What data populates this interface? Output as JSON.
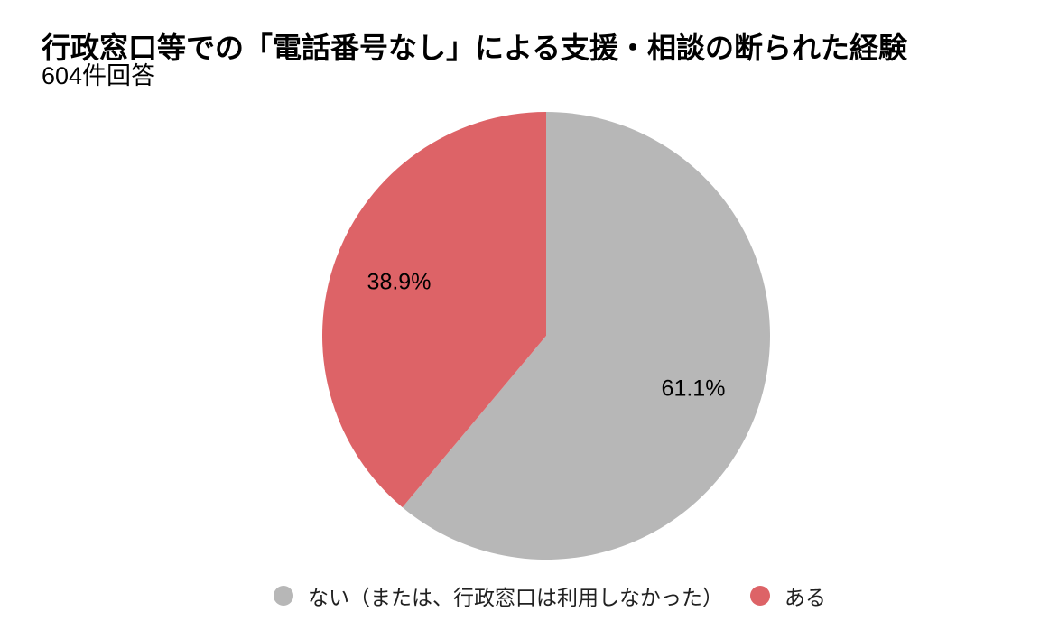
{
  "page": {
    "background_color": "#ffffff"
  },
  "header": {
    "title": "行政窓口等での「電話番号なし」による支援・相談の断られた経験",
    "subtitle": "604件回答"
  },
  "chart_data": {
    "type": "pie",
    "title": "行政窓口等での「電話番号なし」による支援・相談の断られた経験",
    "subtitle": "604件回答",
    "responses_count": 604,
    "start_angle_deg": 0,
    "direction": "clockwise",
    "data_labels": "percent",
    "legend_position": "bottom",
    "slices": [
      {
        "label": "ない（または、行政窓口は利用しなかった）",
        "value": 61.1,
        "display": "61.1%",
        "color": "#b7b7b7"
      },
      {
        "label": "ある",
        "value": 38.9,
        "display": "38.9%",
        "color": "#dd6367"
      }
    ]
  }
}
